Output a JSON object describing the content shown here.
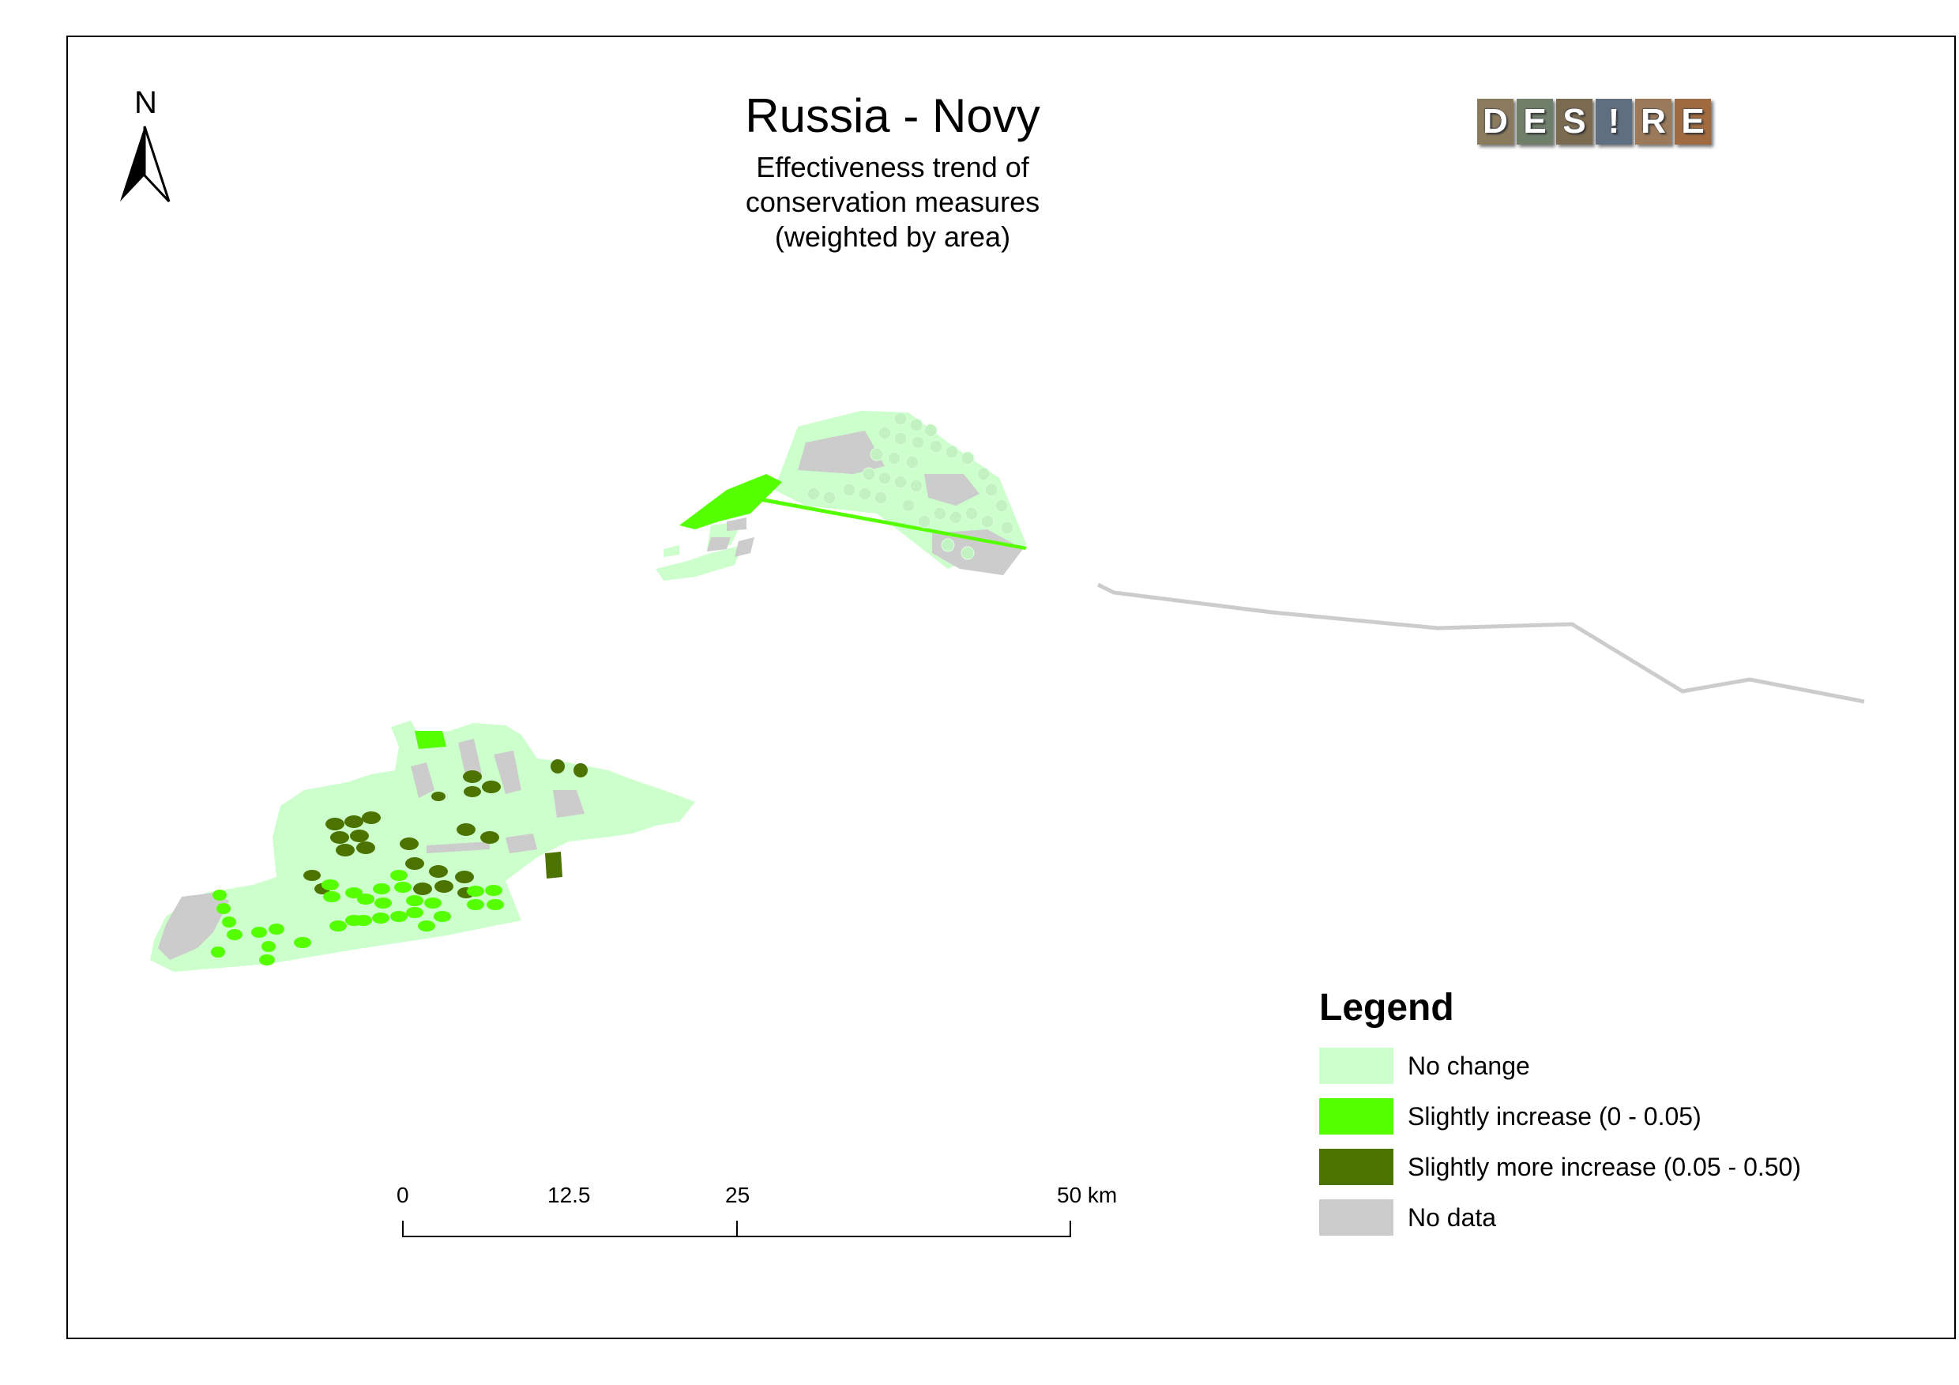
{
  "map": {
    "title": "Russia - Novy",
    "subtitle_lines": [
      "Effectiveness trend of",
      "conservation measures",
      "(weighted by area)"
    ],
    "north_label": "N"
  },
  "logo": {
    "letters": [
      "D",
      "E",
      "S",
      "!",
      "R",
      "E"
    ],
    "tile_colors": [
      "#8a7a5e",
      "#6f7f6a",
      "#7a6a50",
      "#5f6f80",
      "#9a7a5a",
      "#a06a40"
    ]
  },
  "legend": {
    "title": "Legend",
    "items": [
      {
        "label": "No change",
        "color": "#ccffcc"
      },
      {
        "label": "Slightly increase (0 - 0.05)",
        "color": "#55ff00"
      },
      {
        "label": "Slightly more increase (0.05 - 0.50)",
        "color": "#4c7300"
      },
      {
        "label": "No data",
        "color": "#cccccc"
      }
    ]
  },
  "scale_bar": {
    "labels": [
      "0",
      "12.5",
      "25",
      "50 km"
    ]
  },
  "colors": {
    "no_change": "#ccffcc",
    "slight_increase": "#55ff00",
    "more_increase": "#4c7300",
    "no_data": "#cccccc"
  }
}
